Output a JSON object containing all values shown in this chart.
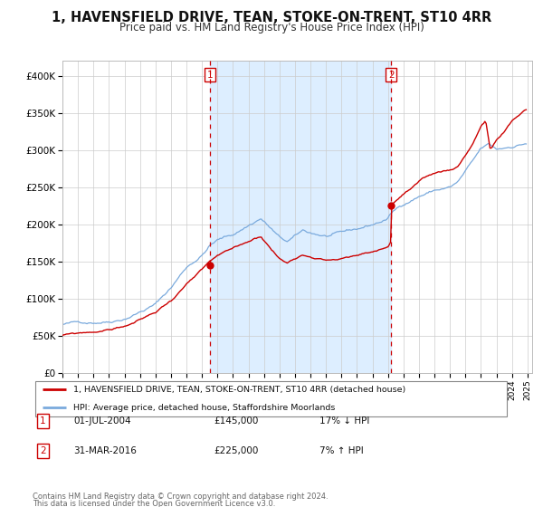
{
  "title": "1, HAVENSFIELD DRIVE, TEAN, STOKE-ON-TRENT, ST10 4RR",
  "subtitle": "Price paid vs. HM Land Registry's House Price Index (HPI)",
  "ylim": [
    0,
    420000
  ],
  "yticks": [
    0,
    50000,
    100000,
    150000,
    200000,
    250000,
    300000,
    350000,
    400000
  ],
  "ytick_labels": [
    "£0",
    "£50K",
    "£100K",
    "£150K",
    "£200K",
    "£250K",
    "£300K",
    "£350K",
    "£400K"
  ],
  "xlim_start": 1995.0,
  "xlim_end": 2025.3,
  "sale1_date": 2004.5,
  "sale1_price": 145000,
  "sale1_label": "1",
  "sale2_date": 2016.2,
  "sale2_price": 225000,
  "sale2_label": "2",
  "legend1_label": "1, HAVENSFIELD DRIVE, TEAN, STOKE-ON-TRENT, ST10 4RR (detached house)",
  "legend2_label": "HPI: Average price, detached house, Staffordshire Moorlands",
  "annotation1": [
    "1",
    "01-JUL-2004",
    "£145,000",
    "17% ↓ HPI"
  ],
  "annotation2": [
    "2",
    "31-MAR-2016",
    "£225,000",
    "7% ↑ HPI"
  ],
  "footnote1": "Contains HM Land Registry data © Crown copyright and database right 2024.",
  "footnote2": "This data is licensed under the Open Government Licence v3.0.",
  "price_line_color": "#cc0000",
  "hpi_line_color": "#7aaadd",
  "shade_color": "#ddeeff",
  "grid_color": "#cccccc",
  "background_color": "#ffffff",
  "title_fontsize": 10.5,
  "subtitle_fontsize": 8.5
}
